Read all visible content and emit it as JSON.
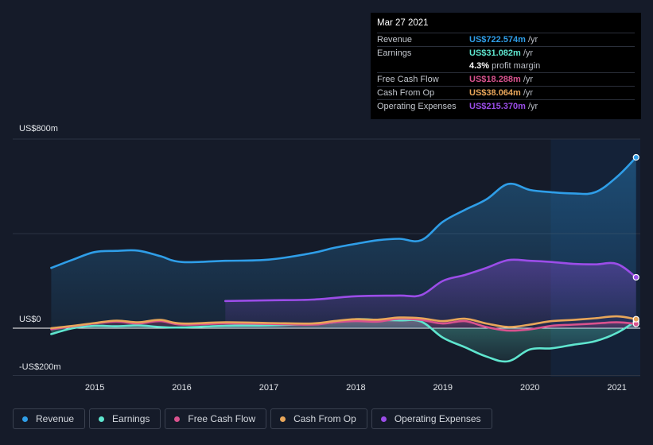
{
  "tooltip": {
    "date": "Mar 27 2021",
    "rows": [
      {
        "label": "Revenue",
        "value": "US$722.574m",
        "unit": "/yr",
        "color": "#2f9ee8"
      },
      {
        "label": "Earnings",
        "value": "US$31.082m",
        "unit": "/yr",
        "color": "#5fe6cf"
      },
      {
        "label": "",
        "value": "4.3%",
        "unit": "profit margin",
        "color": "#ffffff"
      },
      {
        "label": "Free Cash Flow",
        "value": "US$18.288m",
        "unit": "/yr",
        "color": "#d9528e"
      },
      {
        "label": "Cash From Op",
        "value": "US$38.064m",
        "unit": "/yr",
        "color": "#e8a65a"
      },
      {
        "label": "Operating Expenses",
        "value": "US$215.370m",
        "unit": "/yr",
        "color": "#9b4de8"
      }
    ]
  },
  "legend": [
    {
      "label": "Revenue",
      "color": "#2f9ee8"
    },
    {
      "label": "Earnings",
      "color": "#5fe6cf"
    },
    {
      "label": "Free Cash Flow",
      "color": "#d9528e"
    },
    {
      "label": "Cash From Op",
      "color": "#e8a65a"
    },
    {
      "label": "Operating Expenses",
      "color": "#9b4de8"
    }
  ],
  "chart_data": {
    "type": "area",
    "title": "",
    "xlabel": "",
    "ylabel": "",
    "y_tick_labels": [
      "US$800m",
      "US$0",
      "-US$200m"
    ],
    "y_tick_values": [
      800,
      0,
      -200
    ],
    "x_ticks": [
      {
        "value": 2015,
        "label": "2015"
      },
      {
        "value": 2016,
        "label": "2016"
      },
      {
        "value": 2017,
        "label": "2017"
      },
      {
        "value": 2018,
        "label": "2018"
      },
      {
        "value": 2019,
        "label": "2019"
      },
      {
        "value": 2020,
        "label": "2020"
      },
      {
        "value": 2021,
        "label": "2021"
      }
    ],
    "xlim": [
      2014.35,
      2021.25
    ],
    "ylim": [
      -200,
      800
    ],
    "gridlines_at": [
      800,
      400,
      0,
      -200
    ],
    "highlight_start": 2020.24,
    "series": [
      {
        "name": "Revenue",
        "color": "#2f9ee8",
        "fill": true,
        "points": [
          [
            2014.5,
            255
          ],
          [
            2014.75,
            290
          ],
          [
            2015.0,
            322
          ],
          [
            2015.25,
            327
          ],
          [
            2015.5,
            328
          ],
          [
            2015.75,
            305
          ],
          [
            2016.0,
            280
          ],
          [
            2016.5,
            285
          ],
          [
            2017.0,
            290
          ],
          [
            2017.5,
            318
          ],
          [
            2017.75,
            340
          ],
          [
            2018.0,
            357
          ],
          [
            2018.25,
            372
          ],
          [
            2018.5,
            378
          ],
          [
            2018.75,
            372
          ],
          [
            2019.0,
            450
          ],
          [
            2019.25,
            500
          ],
          [
            2019.5,
            545
          ],
          [
            2019.75,
            610
          ],
          [
            2020.0,
            585
          ],
          [
            2020.25,
            575
          ],
          [
            2020.5,
            570
          ],
          [
            2020.75,
            575
          ],
          [
            2021.0,
            640
          ],
          [
            2021.22,
            722.574
          ]
        ]
      },
      {
        "name": "Operating Expenses",
        "color": "#9b4de8",
        "fill": true,
        "points": [
          [
            2016.5,
            115
          ],
          [
            2017.0,
            118
          ],
          [
            2017.5,
            121
          ],
          [
            2018.0,
            135
          ],
          [
            2018.5,
            138
          ],
          [
            2018.75,
            140
          ],
          [
            2019.0,
            200
          ],
          [
            2019.25,
            225
          ],
          [
            2019.5,
            255
          ],
          [
            2019.75,
            288
          ],
          [
            2020.0,
            285
          ],
          [
            2020.25,
            280
          ],
          [
            2020.5,
            272
          ],
          [
            2020.75,
            270
          ],
          [
            2021.0,
            272
          ],
          [
            2021.22,
            215.37
          ]
        ]
      },
      {
        "name": "Earnings",
        "color": "#5fe6cf",
        "fill": true,
        "points": [
          [
            2014.5,
            -25
          ],
          [
            2014.75,
            0
          ],
          [
            2015.0,
            10
          ],
          [
            2015.25,
            8
          ],
          [
            2015.5,
            12
          ],
          [
            2015.75,
            5
          ],
          [
            2016.0,
            3
          ],
          [
            2016.5,
            10
          ],
          [
            2017.0,
            12
          ],
          [
            2017.5,
            18
          ],
          [
            2017.75,
            25
          ],
          [
            2018.0,
            38
          ],
          [
            2018.25,
            35
          ],
          [
            2018.5,
            33
          ],
          [
            2018.75,
            28
          ],
          [
            2019.0,
            -40
          ],
          [
            2019.25,
            -80
          ],
          [
            2019.5,
            -120
          ],
          [
            2019.75,
            -140
          ],
          [
            2020.0,
            -90
          ],
          [
            2020.25,
            -85
          ],
          [
            2020.5,
            -70
          ],
          [
            2020.75,
            -55
          ],
          [
            2021.0,
            -20
          ],
          [
            2021.22,
            31.082
          ]
        ]
      },
      {
        "name": "Free Cash Flow",
        "color": "#d9528e",
        "fill": true,
        "points": [
          [
            2014.5,
            -5
          ],
          [
            2014.75,
            8
          ],
          [
            2015.0,
            20
          ],
          [
            2015.25,
            28
          ],
          [
            2015.5,
            20
          ],
          [
            2015.75,
            30
          ],
          [
            2016.0,
            15
          ],
          [
            2016.5,
            20
          ],
          [
            2017.0,
            18
          ],
          [
            2017.5,
            15
          ],
          [
            2017.75,
            25
          ],
          [
            2018.0,
            30
          ],
          [
            2018.25,
            28
          ],
          [
            2018.5,
            40
          ],
          [
            2018.75,
            35
          ],
          [
            2019.0,
            20
          ],
          [
            2019.25,
            30
          ],
          [
            2019.5,
            5
          ],
          [
            2019.75,
            -10
          ],
          [
            2020.0,
            -5
          ],
          [
            2020.25,
            10
          ],
          [
            2020.5,
            15
          ],
          [
            2020.75,
            20
          ],
          [
            2021.0,
            25
          ],
          [
            2021.22,
            18.288
          ]
        ]
      },
      {
        "name": "Cash From Op",
        "color": "#e8a65a",
        "fill": false,
        "points": [
          [
            2014.5,
            0
          ],
          [
            2014.75,
            10
          ],
          [
            2015.0,
            22
          ],
          [
            2015.25,
            32
          ],
          [
            2015.5,
            25
          ],
          [
            2015.75,
            35
          ],
          [
            2016.0,
            20
          ],
          [
            2016.5,
            25
          ],
          [
            2017.0,
            22
          ],
          [
            2017.5,
            20
          ],
          [
            2017.75,
            30
          ],
          [
            2018.0,
            38
          ],
          [
            2018.25,
            36
          ],
          [
            2018.5,
            45
          ],
          [
            2018.75,
            42
          ],
          [
            2019.0,
            30
          ],
          [
            2019.25,
            40
          ],
          [
            2019.5,
            20
          ],
          [
            2019.75,
            5
          ],
          [
            2020.0,
            15
          ],
          [
            2020.25,
            30
          ],
          [
            2020.5,
            35
          ],
          [
            2020.75,
            42
          ],
          [
            2021.0,
            50
          ],
          [
            2021.22,
            38.064
          ]
        ]
      }
    ]
  }
}
